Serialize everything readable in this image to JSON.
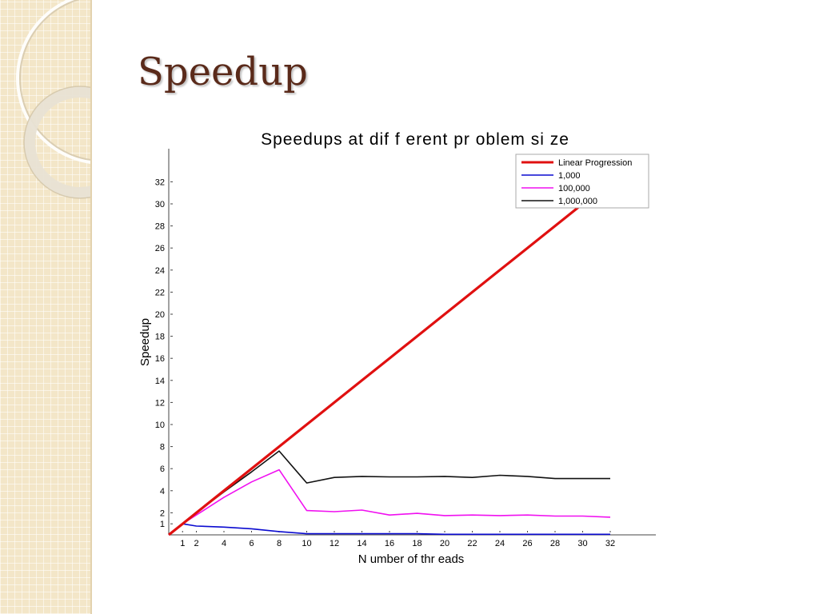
{
  "slide": {
    "title": "Speedup"
  },
  "chart_data": {
    "type": "line",
    "title": "Speedups at dif f erent pr oblem si ze",
    "xlabel": "N umber  of  thr eads",
    "ylabel": "Speedup",
    "xlim": [
      0,
      35
    ],
    "ylim": [
      0,
      35
    ],
    "x_ticks": [
      1,
      2,
      4,
      6,
      8,
      10,
      12,
      14,
      16,
      18,
      20,
      22,
      24,
      26,
      28,
      30,
      32
    ],
    "y_ticks": [
      1,
      2,
      4,
      6,
      8,
      10,
      12,
      14,
      16,
      18,
      20,
      22,
      24,
      26,
      28,
      30,
      32
    ],
    "legend_position": "top-right",
    "series": [
      {
        "name": "Linear Progression",
        "color": "#e01010",
        "x": [
          0,
          1,
          2,
          4,
          6,
          8,
          10,
          12,
          14,
          16,
          18,
          20,
          22,
          24,
          26,
          28,
          30,
          32
        ],
        "y": [
          0,
          1,
          2,
          4,
          6,
          8,
          10,
          12,
          14,
          16,
          18,
          20,
          22,
          24,
          26,
          28,
          30,
          32
        ]
      },
      {
        "name": "1,000",
        "color": "#0a0ad0",
        "x": [
          0,
          1,
          2,
          4,
          6,
          8,
          10,
          12,
          14,
          16,
          18,
          20,
          22,
          24,
          26,
          28,
          30,
          32
        ],
        "y": [
          0,
          1,
          0.8,
          0.7,
          0.55,
          0.3,
          0.1,
          0.1,
          0.1,
          0.1,
          0.1,
          0.05,
          0.05,
          0.05,
          0.05,
          0.05,
          0.05,
          0.05
        ]
      },
      {
        "name": "100,000",
        "color": "#f010f0",
        "x": [
          0,
          1,
          2,
          4,
          6,
          8,
          10,
          12,
          14,
          16,
          18,
          20,
          22,
          24,
          26,
          28,
          30,
          32
        ],
        "y": [
          0,
          1,
          1.8,
          3.4,
          4.8,
          5.9,
          2.2,
          2.1,
          2.25,
          1.8,
          1.95,
          1.75,
          1.8,
          1.75,
          1.8,
          1.7,
          1.7,
          1.6
        ]
      },
      {
        "name": "1,000,000",
        "color": "#111111",
        "x": [
          0,
          1,
          2,
          4,
          6,
          8,
          10,
          12,
          14,
          16,
          18,
          20,
          22,
          24,
          26,
          28,
          30,
          32
        ],
        "y": [
          0,
          1,
          2,
          3.9,
          5.7,
          7.6,
          4.7,
          5.2,
          5.3,
          5.25,
          5.25,
          5.3,
          5.2,
          5.4,
          5.3,
          5.1,
          5.1,
          5.1
        ]
      }
    ]
  }
}
